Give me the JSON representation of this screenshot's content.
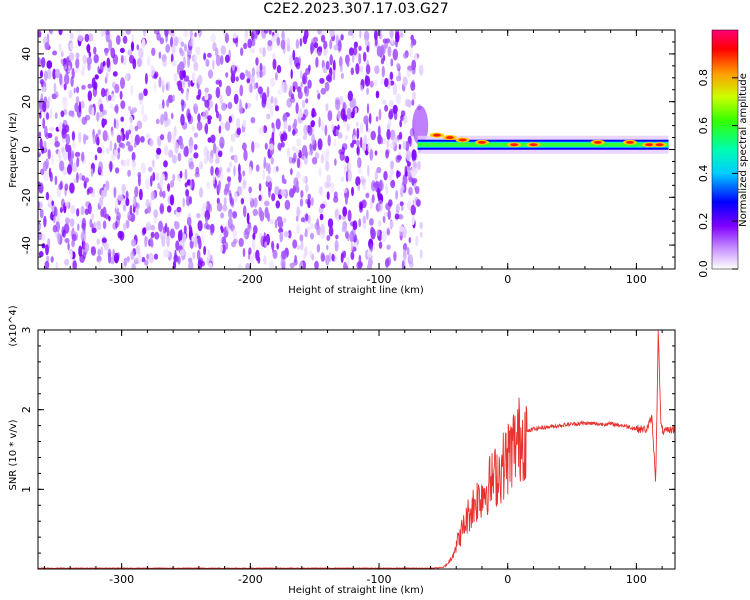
{
  "title": "C2E2.2023.307.17.03.G27",
  "colors": {
    "line": "#e8322e",
    "noise": "#7f00ff",
    "axis": "#000000"
  },
  "chart_data": [
    {
      "type": "heatmap",
      "xlabel": "Height of straight line (km)",
      "ylabel": "Frequency (Hz)",
      "xlim": [
        -365,
        130
      ],
      "ylim": [
        -50,
        50
      ],
      "xticks": [
        -300,
        -200,
        -100,
        0,
        100
      ],
      "yticks": [
        -40,
        -20,
        0,
        20,
        40
      ],
      "colorbar": {
        "label": "Normalized spectral amplitude",
        "ticks": [
          "0.0",
          "0.2",
          "0.4",
          "0.6",
          "0.8"
        ],
        "range": [
          0,
          1
        ]
      },
      "regions": [
        {
          "kind": "noise",
          "x": [
            -365,
            -67
          ],
          "y": [
            -50,
            50
          ],
          "amplitude": 0.15
        },
        {
          "kind": "signal-band",
          "x": [
            -70,
            125
          ],
          "frequency_hz": 2,
          "amplitude": 0.9
        }
      ]
    },
    {
      "type": "line",
      "xlabel": "Height of straight line (km)",
      "ylabel": "SNR (10 * v/v)",
      "yscale_label": "(x10^4)",
      "xlim": [
        -365,
        130
      ],
      "ylim": [
        0,
        3
      ],
      "xticks": [
        -300,
        -200,
        -100,
        0,
        100
      ],
      "yticks": [
        1,
        2,
        3
      ],
      "series": [
        {
          "x": [
            -365,
            -200,
            -100,
            -60,
            -50,
            -45,
            -40,
            -35,
            -30,
            -25,
            -20,
            -15,
            -10,
            -5,
            0,
            5,
            10,
            15,
            20,
            30,
            40,
            50,
            60,
            70,
            80,
            90,
            100,
            108,
            112,
            115,
            117,
            119,
            121,
            125,
            130
          ],
          "y": [
            0.01,
            0.01,
            0.01,
            0.01,
            0.02,
            0.1,
            0.3,
            0.5,
            0.7,
            0.85,
            0.95,
            1.05,
            1.15,
            1.25,
            1.4,
            1.55,
            1.65,
            1.72,
            1.76,
            1.78,
            1.8,
            1.82,
            1.83,
            1.82,
            1.82,
            1.8,
            1.76,
            1.75,
            1.9,
            1.1,
            3.0,
            1.8,
            1.72,
            1.74,
            1.76
          ]
        }
      ]
    }
  ]
}
